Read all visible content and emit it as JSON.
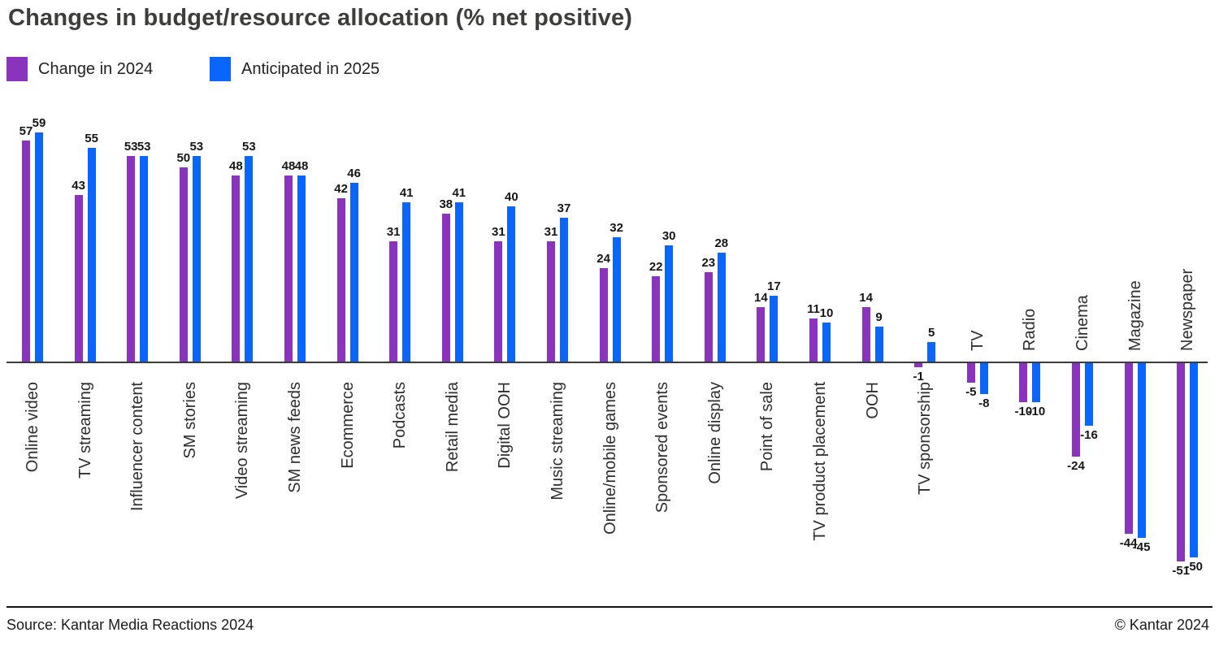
{
  "title": "Changes in budget/resource allocation (% net positive)",
  "legend": {
    "items": [
      {
        "label": "Change in 2024",
        "color": "#8A34BE"
      },
      {
        "label": "Anticipated in 2025",
        "color": "#0A66FB"
      }
    ]
  },
  "footer": {
    "source": "Source: Kantar Media Reactions 2024",
    "copyright": "© Kantar 2024"
  },
  "chart_data": {
    "type": "bar",
    "title": "Changes in budget/resource allocation (% net positive)",
    "xlabel": "",
    "ylabel": "",
    "ylim": [
      -55,
      62
    ],
    "grid": false,
    "value_labels": true,
    "legend_position": "top-left",
    "categories": [
      "Online video",
      "TV streaming",
      "Influencer content",
      "SM stories",
      "Video streaming",
      "SM news feeds",
      "Ecommerce",
      "Podcasts",
      "Retail media",
      "Digital OOH",
      "Music streaming",
      "Online/mobile games",
      "Sponsored events",
      "Online display",
      "Point of sale",
      "TV product placement",
      "OOH",
      "TV sponsorship",
      "TV",
      "Radio",
      "Cinema",
      "Magazine",
      "Newspaper"
    ],
    "series": [
      {
        "name": "Change in 2024",
        "color": "#8A34BE",
        "values": [
          57,
          43,
          53,
          50,
          48,
          48,
          42,
          31,
          38,
          31,
          31,
          24,
          22,
          23,
          14,
          11,
          14,
          -1,
          -5,
          -10,
          -24,
          -44,
          -51
        ]
      },
      {
        "name": "Anticipated in 2025",
        "color": "#0A66FB",
        "values": [
          59,
          55,
          53,
          53,
          53,
          48,
          46,
          41,
          41,
          40,
          37,
          32,
          30,
          28,
          17,
          10,
          9,
          5,
          -8,
          -10,
          -16,
          -45,
          -50
        ]
      }
    ]
  }
}
